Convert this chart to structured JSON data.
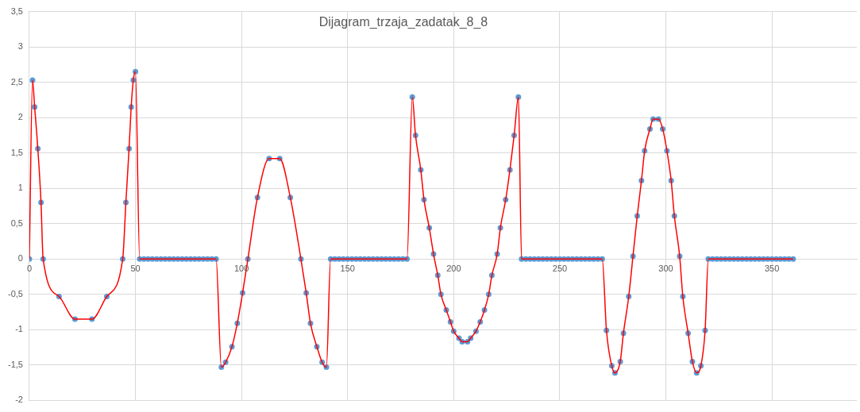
{
  "chart_data": {
    "type": "line",
    "title": "Dijagram_trzaja_zadatak_8_8",
    "x": [
      0,
      1.5,
      2.5,
      4,
      5.5,
      6.5,
      14,
      21.5,
      29.5,
      36.5,
      44,
      45.5,
      47,
      48,
      49,
      50,
      52,
      54,
      56,
      58,
      60,
      62,
      64,
      66,
      68,
      70,
      72,
      74,
      76,
      78,
      80,
      82,
      84,
      86,
      88,
      90.5,
      92.5,
      95.5,
      98,
      100.5,
      103,
      107.5,
      113,
      118,
      123,
      128,
      130.5,
      132.5,
      135.5,
      138,
      140,
      142,
      144,
      146,
      148,
      150,
      152,
      154,
      156,
      158,
      160,
      162,
      164,
      166,
      168,
      170,
      172,
      174,
      176,
      178,
      180.5,
      182,
      184.5,
      186,
      188.5,
      190.5,
      192.5,
      194,
      196.5,
      198.5,
      200,
      202.5,
      204,
      206.5,
      208,
      210.5,
      212.5,
      214.5,
      216.5,
      218,
      220.5,
      222,
      224.5,
      226.5,
      228.5,
      230.5,
      232,
      234,
      236,
      238,
      240,
      242,
      244,
      246,
      248,
      250,
      252,
      254,
      256,
      258,
      260,
      262,
      264,
      266,
      268,
      270,
      272,
      274.5,
      276,
      278.5,
      280,
      282.5,
      284.5,
      286.5,
      288.5,
      290,
      292.5,
      294,
      296.5,
      298.5,
      300.5,
      302.5,
      304,
      306.5,
      308,
      310.5,
      312.5,
      314.5,
      316.5,
      318.5,
      320,
      322,
      324,
      326,
      328,
      330,
      332,
      334,
      336,
      338,
      340,
      342,
      344,
      346,
      348,
      350,
      352,
      354,
      356,
      358,
      360
    ],
    "series": [
      {
        "type": "line",
        "color": "#ff0000",
        "marker": "none",
        "line_style": "solid",
        "values": [
          0,
          2.53,
          2.15,
          1.56,
          0.8,
          0,
          -0.53,
          -0.85,
          -0.85,
          -0.53,
          0,
          0.8,
          1.56,
          2.15,
          2.53,
          2.65,
          0,
          0,
          0,
          0,
          0,
          0,
          0,
          0,
          0,
          0,
          0,
          0,
          0,
          0,
          0,
          0,
          0,
          0,
          0,
          -1.53,
          -1.46,
          -1.24,
          -0.91,
          -0.48,
          0,
          0.87,
          1.42,
          1.42,
          0.87,
          0,
          -0.48,
          -0.91,
          -1.24,
          -1.46,
          -1.53,
          0,
          0,
          0,
          0,
          0,
          0,
          0,
          0,
          0,
          0,
          0,
          0,
          0,
          0,
          0,
          0,
          0,
          0,
          0,
          2.29,
          1.75,
          1.26,
          0.84,
          0.44,
          0.07,
          -0.23,
          -0.5,
          -0.72,
          -0.89,
          -1.02,
          -1.12,
          -1.17,
          -1.17,
          -1.12,
          -1.02,
          -0.89,
          -0.72,
          -0.5,
          -0.23,
          0.07,
          0.44,
          0.84,
          1.26,
          1.75,
          2.29,
          0,
          0,
          0,
          0,
          0,
          0,
          0,
          0,
          0,
          0,
          0,
          0,
          0,
          0,
          0,
          0,
          0,
          0,
          0,
          0,
          -1.01,
          -1.51,
          -1.61,
          -1.45,
          -1.05,
          -0.53,
          0.04,
          0.61,
          1.11,
          1.53,
          1.84,
          1.98,
          1.98,
          1.84,
          1.53,
          1.11,
          0.61,
          0.04,
          -0.53,
          -1.05,
          -1.45,
          -1.61,
          -1.51,
          -1.01,
          0,
          0,
          0,
          0,
          0,
          0,
          0,
          0,
          0,
          0,
          0,
          0,
          0,
          0,
          0,
          0,
          0,
          0,
          0,
          0,
          0
        ]
      },
      {
        "type": "scatter",
        "color": "#5b9bd5",
        "marker": "circle",
        "values": [
          0,
          2.53,
          2.15,
          1.56,
          0.8,
          0,
          -0.53,
          -0.85,
          -0.85,
          -0.53,
          0,
          0.8,
          1.56,
          2.15,
          2.53,
          2.65,
          0,
          0,
          0,
          0,
          0,
          0,
          0,
          0,
          0,
          0,
          0,
          0,
          0,
          0,
          0,
          0,
          0,
          0,
          0,
          -1.53,
          -1.46,
          -1.24,
          -0.91,
          -0.48,
          0,
          0.87,
          1.42,
          1.42,
          0.87,
          0,
          -0.48,
          -0.91,
          -1.24,
          -1.46,
          -1.53,
          0,
          0,
          0,
          0,
          0,
          0,
          0,
          0,
          0,
          0,
          0,
          0,
          0,
          0,
          0,
          0,
          0,
          0,
          0,
          2.29,
          1.75,
          1.26,
          0.84,
          0.44,
          0.07,
          -0.23,
          -0.5,
          -0.72,
          -0.89,
          -1.02,
          -1.12,
          -1.17,
          -1.17,
          -1.12,
          -1.02,
          -0.89,
          -0.72,
          -0.5,
          -0.23,
          0.07,
          0.44,
          0.84,
          1.26,
          1.75,
          2.29,
          0,
          0,
          0,
          0,
          0,
          0,
          0,
          0,
          0,
          0,
          0,
          0,
          0,
          0,
          0,
          0,
          0,
          0,
          0,
          0,
          -1.01,
          -1.51,
          -1.61,
          -1.45,
          -1.05,
          -0.53,
          0.04,
          0.61,
          1.11,
          1.53,
          1.84,
          1.98,
          1.98,
          1.84,
          1.53,
          1.11,
          0.61,
          0.04,
          -0.53,
          -1.05,
          -1.45,
          -1.61,
          -1.51,
          -1.01,
          0,
          0,
          0,
          0,
          0,
          0,
          0,
          0,
          0,
          0,
          0,
          0,
          0,
          0,
          0,
          0,
          0,
          0,
          0,
          0,
          0
        ]
      }
    ],
    "xlim": [
      0,
      390
    ],
    "xticks": [
      0,
      50,
      100,
      150,
      200,
      250,
      300,
      350
    ],
    "ylim": [
      -2,
      3.5
    ],
    "yticks": [
      {
        "value": -2,
        "label": "-2"
      },
      {
        "value": -1.5,
        "label": "-1,5"
      },
      {
        "value": -1,
        "label": "-1"
      },
      {
        "value": -0.5,
        "label": "-0,5"
      },
      {
        "value": 0,
        "label": "0"
      },
      {
        "value": 0.5,
        "label": "0,5"
      },
      {
        "value": 1,
        "label": "1"
      },
      {
        "value": 1.5,
        "label": "1,5"
      },
      {
        "value": 2,
        "label": "2"
      },
      {
        "value": 2.5,
        "label": "2,5"
      },
      {
        "value": 3,
        "label": "3"
      },
      {
        "value": 3.5,
        "label": "3,5"
      }
    ],
    "grid": true
  }
}
